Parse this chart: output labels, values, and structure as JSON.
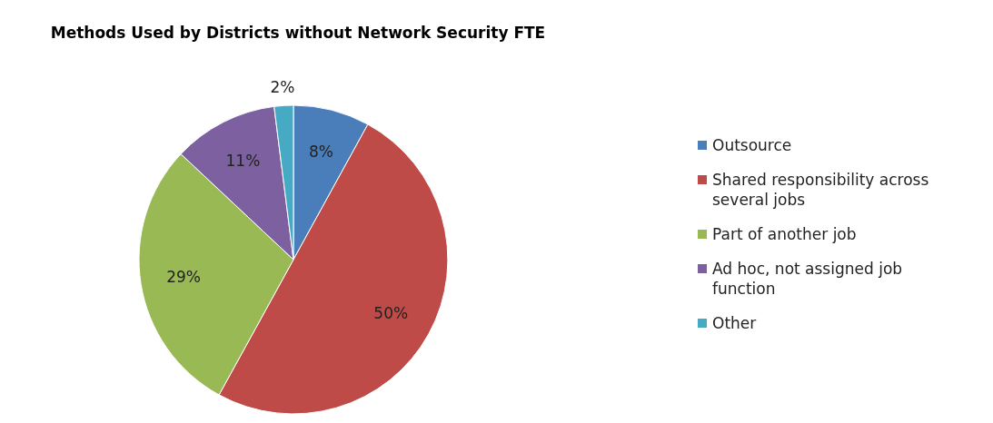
{
  "chart_data": {
    "type": "pie",
    "title": "Methods Used by Districts without Network Security FTE",
    "categories": [
      "Outsource",
      "Shared responsibility across several jobs",
      "Part of another job",
      "Ad hoc, not assigned job function",
      "Other"
    ],
    "values": [
      8,
      50,
      29,
      11,
      2
    ],
    "value_labels": [
      "8%",
      "50%",
      "29%",
      "11%",
      "2%"
    ],
    "colors": [
      "#4a7ebb",
      "#be4b48",
      "#98b954",
      "#7d60a0",
      "#46aac5"
    ],
    "legend": "right"
  }
}
